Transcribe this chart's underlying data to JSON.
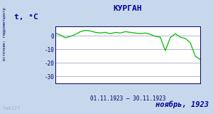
{
  "title": "КУРГАН",
  "ylabel": "t, °C",
  "xlabel": "01.11.1923 – 30.11.1923",
  "bottom_label": "ноябрь, 1923",
  "side_label": "источник: гидрометцентр",
  "watermark": "lab127",
  "ylim": [
    -35,
    7
  ],
  "yticks": [
    0,
    -10,
    -20,
    -30
  ],
  "days": [
    1,
    2,
    3,
    4,
    5,
    6,
    7,
    8,
    9,
    10,
    11,
    12,
    13,
    14,
    15,
    16,
    17,
    18,
    19,
    20,
    21,
    22,
    23,
    24,
    25,
    26,
    27,
    28,
    29,
    30
  ],
  "temps": [
    2.0,
    0.5,
    -1.5,
    -0.5,
    1.0,
    3.0,
    4.0,
    3.5,
    2.5,
    2.0,
    2.5,
    1.5,
    2.5,
    2.0,
    3.0,
    2.5,
    2.0,
    1.5,
    2.0,
    1.0,
    -0.5,
    -1.0,
    -11.0,
    -1.5,
    1.5,
    -1.0,
    -2.0,
    -5.0,
    -15.0,
    -17.5
  ],
  "line_color": "#00BB00",
  "bg_color": "#C8D8EC",
  "plot_bg": "#FFFFFF",
  "grid_color": "#9999BB",
  "title_color": "#000099",
  "label_color": "#000099",
  "bottom_label_color": "#000099",
  "axes_color": "#000066",
  "watermark_color": "#AAAACC"
}
